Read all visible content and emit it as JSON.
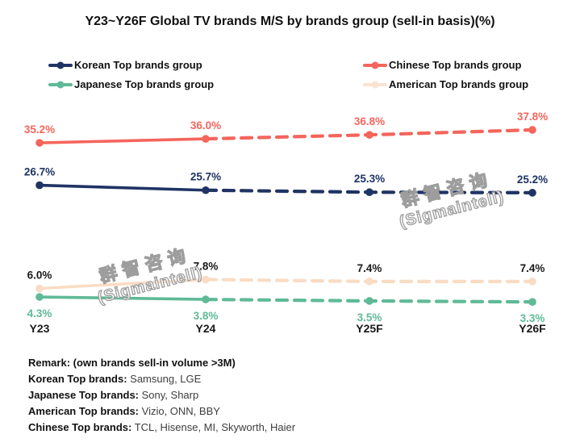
{
  "title": "Y23~Y26F Global TV brands M/S by brands group (sell-in basis)(%)",
  "watermark": {
    "line1": "群智咨询",
    "line2": "(Sigmaintell)"
  },
  "legend": {
    "items": [
      {
        "label": "Korean Top brands group",
        "color": "#1f3464"
      },
      {
        "label": "Chinese Top brands group",
        "color": "#f4655c"
      },
      {
        "label": "Japanese Top brands group",
        "color": "#5fba97"
      },
      {
        "label": "American Top brands group",
        "color": "#fae3d1"
      }
    ]
  },
  "chart_data": {
    "type": "line",
    "title": "Y23~Y26F Global TV brands M/S by brands group (sell-in basis)(%)",
    "categories": [
      "Y23",
      "Y24",
      "Y25F",
      "Y26F"
    ],
    "series": [
      {
        "name": "Korean Top brands group",
        "values": [
          26.7,
          25.7,
          25.3,
          25.2
        ],
        "labels": [
          "26.7%",
          "25.7%",
          "25.3%",
          "25.2%"
        ],
        "color": "#1f3464",
        "label_color": "#1f3464",
        "label_position": "above"
      },
      {
        "name": "Chinese Top brands group",
        "values": [
          35.2,
          36.0,
          36.8,
          37.8
        ],
        "labels": [
          "35.2%",
          "36.0%",
          "36.8%",
          "37.8%"
        ],
        "color": "#f4655c",
        "label_color": "#f4655c",
        "label_position": "above"
      },
      {
        "name": "Japanese Top brands group",
        "values": [
          4.3,
          3.8,
          3.5,
          3.3
        ],
        "labels": [
          "4.3%",
          "3.8%",
          "3.5%",
          "3.3%"
        ],
        "color": "#5fba97",
        "label_color": "#5fba97",
        "label_position": "below"
      },
      {
        "name": "American Top brands group",
        "values": [
          6.0,
          7.8,
          7.4,
          7.4
        ],
        "labels": [
          "6.0%",
          "7.8%",
          "7.4%",
          "7.4%"
        ],
        "color": "#f9dcc4",
        "label_color": "#1a1a1a",
        "label_position": "above"
      }
    ],
    "line_style": {
      "solid_segment": [
        "Y23",
        "Y24"
      ],
      "dashed_segment": [
        "Y24",
        "Y26F"
      ]
    },
    "xlabel": "",
    "ylabel": "",
    "ylim": [
      0,
      42
    ],
    "grid": false,
    "legend_position": "top"
  },
  "remarks": {
    "title": "Remark: (own brands sell-in volume >3M)",
    "items": [
      {
        "label": "Korean Top brands:",
        "value": " Samsung, LGE"
      },
      {
        "label": "Japanese Top brands:",
        "value": " Sony, Sharp"
      },
      {
        "label": "American Top brands:",
        "value": " Vizio, ONN, BBY"
      },
      {
        "label": "Chinese Top brands:",
        "value": " TCL, Hisense, MI, Skyworth, Haier"
      }
    ]
  }
}
